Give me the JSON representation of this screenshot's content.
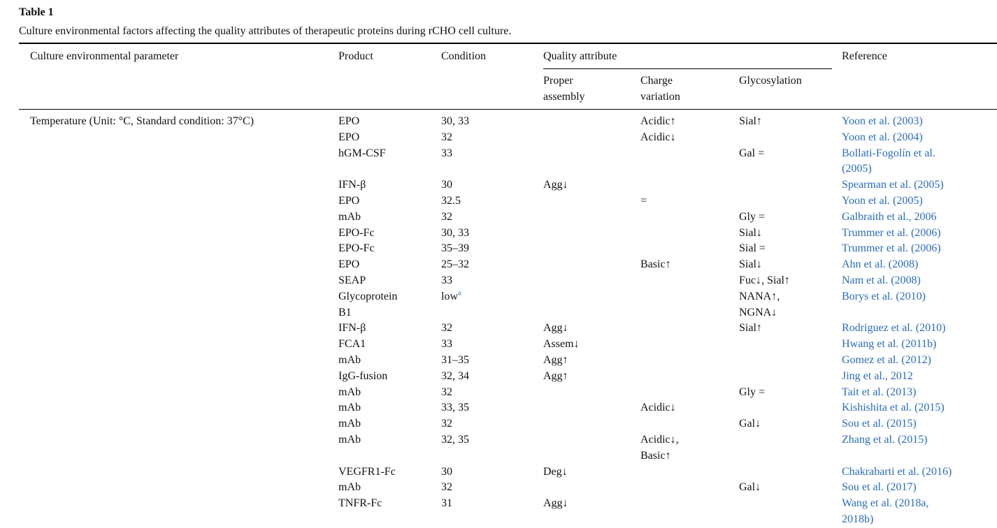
{
  "title": "Table 1",
  "caption": "Culture environmental factors affecting the quality attributes of therapeutic proteins during rCHO cell culture.",
  "header": {
    "parameter": "Culture environmental parameter",
    "product": "Product",
    "condition": "Condition",
    "quality_attribute": "Quality attribute",
    "proper_assembly": "Proper assembly",
    "charge_variation": "Charge variation",
    "glycosylation": "Glycosylation",
    "reference": "Reference"
  },
  "group": {
    "parameter": "Temperature (Unit: °C, Standard condition: 37°C)",
    "rows": [
      {
        "product": "EPO",
        "condition": "30, 33",
        "charge": "Acidic↑",
        "glycosylation": "Sial↑",
        "reference": "Yoon et al. (2003)"
      },
      {
        "product": "EPO",
        "condition": "32",
        "charge": "Acidic↓",
        "reference": "Yoon et al. (2004)"
      },
      {
        "product": "hGM-CSF",
        "condition": "33",
        "glycosylation": "Gal =",
        "reference": "Bollati-Fogolín et al. (2005)"
      },
      {
        "product": "IFN-β",
        "condition": "30",
        "assembly": "Agg↓",
        "reference": "Spearman et al. (2005)"
      },
      {
        "product": "EPO",
        "condition": "32.5",
        "charge": "=",
        "reference": "Yoon et al. (2005)"
      },
      {
        "product": "mAb",
        "condition": "32",
        "glycosylation": "Gly =",
        "reference": "Galbraith et al., 2006"
      },
      {
        "product": "EPO-Fc",
        "condition": "30, 33",
        "glycosylation": "Sial↓",
        "reference": "Trummer et al. (2006)"
      },
      {
        "product": "EPO-Fc",
        "condition": "35–39",
        "glycosylation": "Sial =",
        "reference": "Trummer et al. (2006)"
      },
      {
        "product": "EPO",
        "condition": "25–32",
        "charge": "Basic↑",
        "glycosylation": "Sial↓",
        "reference": "Ahn et al. (2008)"
      },
      {
        "product": "SEAP",
        "condition": "33",
        "glycosylation": "Fuc↓, Sial↑",
        "reference": "Nam et al. (2008)"
      },
      {
        "product": "Glycoprotein B1",
        "condition": "low",
        "condition_note": "a",
        "glycosylation": "NANA↑, NGNA↓",
        "reference": "Borys et al. (2010)"
      },
      {
        "product": "IFN-β",
        "condition": "32",
        "assembly": "Agg↓",
        "glycosylation": "Sial↑",
        "reference": "Rodriguez et al. (2010)"
      },
      {
        "product": "FCA1",
        "condition": "33",
        "assembly": "Assem↓",
        "reference": "Hwang et al. (2011b)"
      },
      {
        "product": "mAb",
        "condition": "31–35",
        "assembly": "Agg↑",
        "reference": "Gomez et al. (2012)"
      },
      {
        "product": "IgG-fusion",
        "condition": "32, 34",
        "assembly": "Agg↑",
        "reference": "Jing et al., 2012"
      },
      {
        "product": "mAb",
        "condition": "32",
        "glycosylation": "Gly =",
        "reference": "Tait et al. (2013)"
      },
      {
        "product": "mAb",
        "condition": "33, 35",
        "charge": "Acidic↓",
        "reference": "Kishishita et al. (2015)"
      },
      {
        "product": "mAb",
        "condition": "32",
        "glycosylation": "Gal↓",
        "reference": "Sou et al. (2015)"
      },
      {
        "product": "mAb",
        "condition": "32, 35",
        "charge": "Acidic↓, Basic↑",
        "reference": "Zhang et al. (2015)"
      },
      {
        "product": "VEGFR1-Fc",
        "condition": "30",
        "assembly": "Deg↓",
        "reference": "Chakrabarti et al. (2016)"
      },
      {
        "product": "mAb",
        "condition": "32",
        "glycosylation": "Gal↓",
        "reference": "Sou et al. (2017)"
      },
      {
        "product": "TNFR-Fc",
        "condition": "31",
        "assembly": "Agg↓",
        "reference": "Wang et al. (2018a, 2018b)"
      }
    ]
  }
}
